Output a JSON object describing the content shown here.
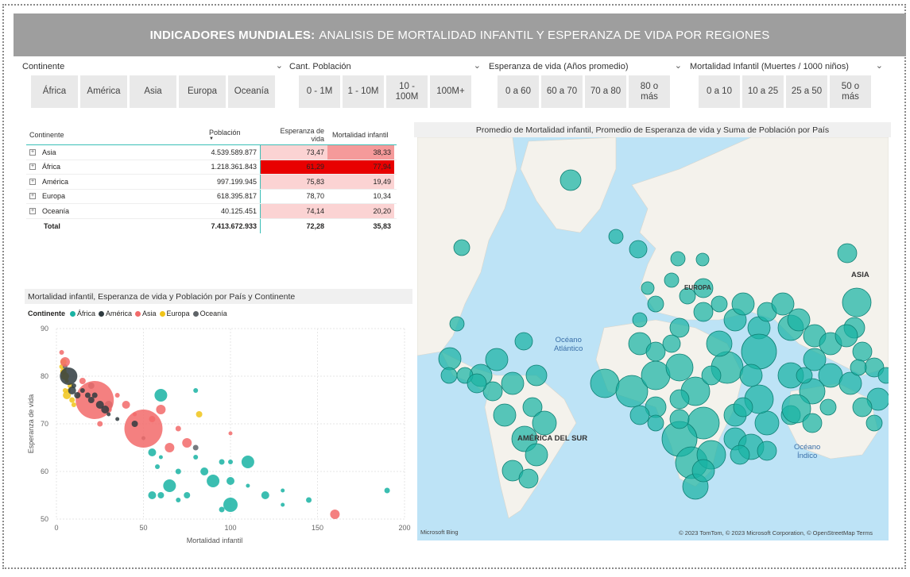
{
  "header": {
    "title_bold": "INDICADORES MUNDIALES:",
    "title_rest": "ANALISIS DE MORTALIDAD INFANTIL Y ESPERANZA DE VIDA POR REGIONES"
  },
  "slicers": {
    "continente": {
      "label": "Continente",
      "options": [
        "África",
        "América",
        "Asia",
        "Europa",
        "Oceanía"
      ]
    },
    "poblacion": {
      "label": "Cant. Población",
      "options": [
        "0 - 1M",
        "1 - 10M",
        "10 - 100M",
        "100M+"
      ]
    },
    "esperanza": {
      "label": "Esperanza de vida (Años promedio)",
      "options": [
        "0 a 60",
        "60 a 70",
        "70 a 80",
        "80 o más"
      ]
    },
    "mortalidad": {
      "label": "Mortalidad Infantil (Muertes / 1000 niños)",
      "options": [
        "0 a 10",
        "10 a 25",
        "25 a 50",
        "50 o más"
      ]
    }
  },
  "table": {
    "headers": [
      "Continente",
      "Población",
      "Esperanza de vida",
      "Mortalidad infantil"
    ],
    "rows": [
      {
        "name": "Asia",
        "pop": "4.539.589.877",
        "life": "73,47",
        "mort": "38,33"
      },
      {
        "name": "África",
        "pop": "1.218.361.843",
        "life": "61,29",
        "mort": "77,94"
      },
      {
        "name": "América",
        "pop": "997.199.945",
        "life": "75,83",
        "mort": "19,49"
      },
      {
        "name": "Europa",
        "pop": "618.395.817",
        "life": "78,70",
        "mort": "10,34"
      },
      {
        "name": "Oceanía",
        "pop": "40.125.451",
        "life": "74,14",
        "mort": "20,20"
      }
    ],
    "total": {
      "name": "Total",
      "pop": "7.413.672.933",
      "life": "72,28",
      "mort": "35,83"
    },
    "colors": {
      "strong": "#e80000",
      "mid": "#f59a9a",
      "light": "#fbd3d3"
    }
  },
  "scatter": {
    "title": "Mortalidad infantil, Esperanza de vida y Población por País y Continente",
    "legend_label": "Continente",
    "legend": [
      {
        "name": "África",
        "color": "#19b3a3"
      },
      {
        "name": "América",
        "color": "#2f3b40"
      },
      {
        "name": "Asia",
        "color": "#f26a6a"
      },
      {
        "name": "Europa",
        "color": "#f0c419"
      },
      {
        "name": "Oceanía",
        "color": "#5f6468"
      }
    ],
    "xlabel": "Mortalidad infantil",
    "ylabel": "Esperanza de vida",
    "xticks": [
      "0",
      "50",
      "100",
      "150",
      "200"
    ],
    "yticks": [
      "50",
      "60",
      "70",
      "80",
      "90"
    ]
  },
  "chart_data": {
    "type": "scatter",
    "xlabel": "Mortalidad infantil",
    "ylabel": "Esperanza de vida",
    "xlim": [
      0,
      200
    ],
    "ylim": [
      50,
      90
    ],
    "series": [
      {
        "name": "África",
        "points": [
          [
            80,
            77
          ],
          [
            60,
            76
          ],
          [
            55,
            64
          ],
          [
            60,
            63
          ],
          [
            95,
            62
          ],
          [
            100,
            62
          ],
          [
            110,
            62
          ],
          [
            100,
            58
          ],
          [
            90,
            58
          ],
          [
            70,
            60
          ],
          [
            65,
            57
          ],
          [
            100,
            53
          ],
          [
            120,
            55
          ],
          [
            130,
            53
          ],
          [
            190,
            56
          ],
          [
            58,
            61
          ],
          [
            75,
            55
          ],
          [
            85,
            60
          ],
          [
            110,
            57
          ],
          [
            95,
            52
          ],
          [
            70,
            54
          ],
          [
            60,
            55
          ],
          [
            55,
            55
          ],
          [
            130,
            56
          ],
          [
            145,
            54
          ],
          [
            80,
            63
          ]
        ]
      },
      {
        "name": "América",
        "points": [
          [
            7,
            80
          ],
          [
            20,
            75
          ],
          [
            25,
            74
          ],
          [
            30,
            72
          ],
          [
            18,
            76
          ],
          [
            15,
            77
          ],
          [
            12,
            76
          ],
          [
            28,
            73
          ],
          [
            35,
            71
          ],
          [
            22,
            76
          ],
          [
            10,
            78
          ],
          [
            45,
            70
          ],
          [
            9,
            77
          ]
        ]
      },
      {
        "name": "Asia",
        "points": [
          [
            3,
            85
          ],
          [
            22,
            75
          ],
          [
            50,
            69
          ],
          [
            60,
            73
          ],
          [
            70,
            69
          ],
          [
            75,
            66
          ],
          [
            30,
            73
          ],
          [
            40,
            74
          ],
          [
            45,
            72
          ],
          [
            25,
            70
          ],
          [
            35,
            76
          ],
          [
            55,
            71
          ],
          [
            65,
            65
          ],
          [
            100,
            68
          ],
          [
            160,
            51
          ],
          [
            5,
            83
          ],
          [
            15,
            79
          ]
        ]
      },
      {
        "name": "Europa",
        "points": [
          [
            3,
            82
          ],
          [
            4,
            81
          ],
          [
            5,
            80
          ],
          [
            6,
            79
          ],
          [
            8,
            78
          ],
          [
            5,
            77
          ],
          [
            4,
            83
          ],
          [
            6,
            76
          ],
          [
            7,
            77
          ],
          [
            9,
            75
          ],
          [
            10,
            74
          ],
          [
            82,
            72
          ]
        ]
      },
      {
        "name": "Oceanía",
        "points": [
          [
            5,
            82
          ],
          [
            20,
            78
          ],
          [
            30,
            74
          ],
          [
            50,
            67
          ],
          [
            80,
            65
          ]
        ]
      }
    ]
  },
  "map": {
    "title": "Promedio de Mortalidad infantil, Promedio de Esperanza de vida y Suma de Población por País",
    "labels": {
      "asia": "ASIA",
      "europa": "EUROPA",
      "sur": "AMÉRICA DEL SUR",
      "atlantico": "Océano\nAtlántico",
      "indico": "Océano\nÍndico"
    },
    "copyright": "© 2023 TomTom, © 2023 Microsoft Corporation, © OpenStreetMap  Terms",
    "bing": "Microsoft Bing",
    "bubble_color": "#19b3a3"
  }
}
